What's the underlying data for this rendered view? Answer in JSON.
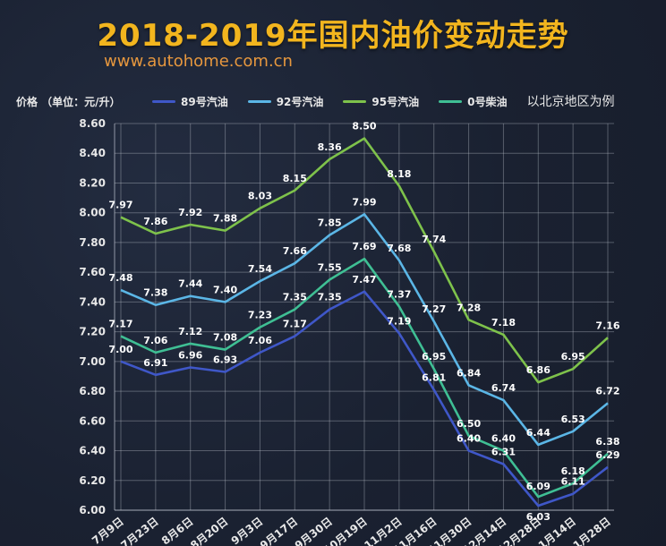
{
  "title": "2018-2019年国内油价变动走势",
  "subtitle": "www.autohome.com.cn",
  "ylabel": "价格 （单位：元/升）",
  "note": "以北京地区为例",
  "colors": {
    "s89": "#3f57c8",
    "s92": "#5bb6e6",
    "s95": "#7ec24b",
    "s0": "#3fbf94"
  },
  "chart_data": {
    "type": "line",
    "title": "2018-2019年国内油价变动走势",
    "xlabel": "",
    "ylabel": "价格 （单位：元/升）",
    "ylim": [
      6.0,
      8.6
    ],
    "yticks": [
      "6.00",
      "6.20",
      "6.40",
      "6.60",
      "6.80",
      "7.00",
      "7.20",
      "7.40",
      "7.60",
      "7.80",
      "8.00",
      "8.20",
      "8.40",
      "8.60"
    ],
    "grid": true,
    "legend": "top",
    "x": [
      "7月9日",
      "7月23日",
      "8月6日",
      "8月20日",
      "9月3日",
      "9月17日",
      "9月30日",
      "10月19日",
      "11月2日",
      "11月16日",
      "11月30日",
      "12月14日",
      "12月28日",
      "1月14日",
      "1月28日"
    ],
    "series": [
      {
        "name": "89号汽油",
        "color_key": "s89",
        "values": [
          7.0,
          6.91,
          6.96,
          6.93,
          7.06,
          7.17,
          7.35,
          7.47,
          7.19,
          6.81,
          6.4,
          6.31,
          6.03,
          6.11,
          6.29
        ]
      },
      {
        "name": "92号汽油",
        "color_key": "s92",
        "values": [
          7.48,
          7.38,
          7.44,
          7.4,
          7.54,
          7.66,
          7.85,
          7.99,
          7.68,
          7.27,
          6.84,
          6.74,
          6.44,
          6.53,
          6.72
        ]
      },
      {
        "name": "95号汽油",
        "color_key": "s95",
        "values": [
          7.97,
          7.86,
          7.92,
          7.88,
          8.03,
          8.15,
          8.36,
          8.5,
          8.18,
          7.74,
          7.28,
          7.18,
          6.86,
          6.95,
          7.16
        ]
      },
      {
        "name": "0号柴油",
        "color_key": "s0",
        "values": [
          7.17,
          7.06,
          7.12,
          7.08,
          7.23,
          7.35,
          7.55,
          7.69,
          7.37,
          6.95,
          6.5,
          6.4,
          6.09,
          6.18,
          6.38
        ]
      }
    ]
  }
}
